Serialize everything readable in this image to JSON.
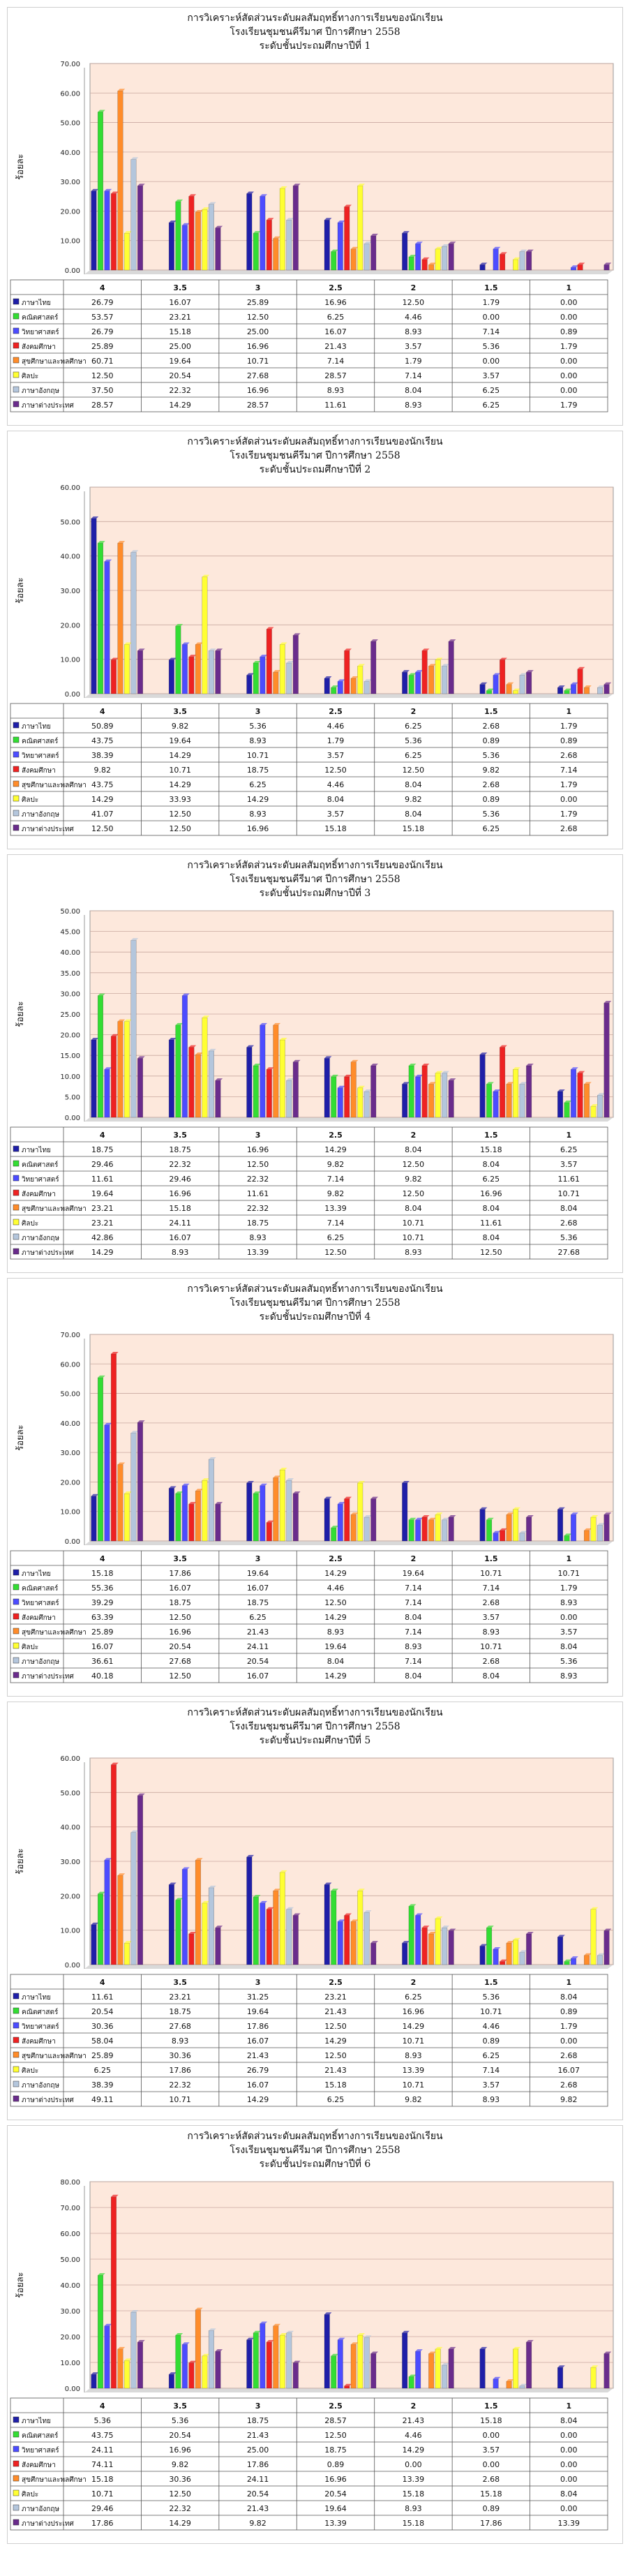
{
  "colors": [
    "#1f1fa8",
    "#33dd33",
    "#4c4cff",
    "#ee2222",
    "#ff8c2a",
    "#ffff33",
    "#b4c6dc",
    "#6a2c8c"
  ],
  "chart_data": [
    {
      "type": "bar",
      "title_lines": [
        "การวิเคราะห์สัดส่วนระดับผลสัมฤทธิ์ทางการเรียนของนักเรียน",
        "โรงเรียนชุมชนคีรีมาศ ปีการศึกษา 2558",
        "ระดับชั้นประถมศึกษาปีที่ 1"
      ],
      "ylabel": "ร้อยละ",
      "ylim": [
        0,
        70
      ],
      "yticks": [
        "0.00",
        "10.00",
        "20.00",
        "30.00",
        "40.00",
        "50.00",
        "60.00",
        "70.00"
      ],
      "categories": [
        "4",
        "3.5",
        "3",
        "2.5",
        "2",
        "1.5",
        "1"
      ],
      "series": [
        {
          "name": "ภาษาไทย",
          "values": [
            "26.79",
            "16.07",
            "25.89",
            "16.96",
            "12.50",
            "1.79",
            "0.00"
          ]
        },
        {
          "name": "คณิตศาสตร์",
          "values": [
            "53.57",
            "23.21",
            "12.50",
            "6.25",
            "4.46",
            "0.00",
            "0.00"
          ]
        },
        {
          "name": "วิทยาศาสตร์",
          "values": [
            "26.79",
            "15.18",
            "25.00",
            "16.07",
            "8.93",
            "7.14",
            "0.89"
          ]
        },
        {
          "name": "สังคมศึกษา",
          "values": [
            "25.89",
            "25.00",
            "16.96",
            "21.43",
            "3.57",
            "5.36",
            "1.79"
          ]
        },
        {
          "name": "สุขศึกษาและพลศึกษา",
          "values": [
            "60.71",
            "19.64",
            "10.71",
            "7.14",
            "1.79",
            "0.00",
            "0.00"
          ]
        },
        {
          "name": "ศิลปะ",
          "values": [
            "12.50",
            "20.54",
            "27.68",
            "28.57",
            "7.14",
            "3.57",
            "0.00"
          ]
        },
        {
          "name": "ภาษาอังกฤษ",
          "values": [
            "37.50",
            "22.32",
            "16.96",
            "8.93",
            "8.04",
            "6.25",
            "0.00"
          ]
        },
        {
          "name": "ภาษาต่างประเทศ",
          "values": [
            "28.57",
            "14.29",
            "28.57",
            "11.61",
            "8.93",
            "6.25",
            "1.79"
          ]
        }
      ]
    },
    {
      "type": "bar",
      "title_lines": [
        "การวิเคราะห์สัดส่วนระดับผลสัมฤทธิ์ทางการเรียนของนักเรียน",
        "โรงเรียนชุมชนคีรีมาศ ปีการศึกษา 2558",
        "ระดับชั้นประถมศึกษาปีที่ 2"
      ],
      "ylabel": "ร้อยละ",
      "ylim": [
        0,
        60
      ],
      "yticks": [
        "0.00",
        "10.00",
        "20.00",
        "30.00",
        "40.00",
        "50.00",
        "60.00"
      ],
      "categories": [
        "4",
        "3.5",
        "3",
        "2.5",
        "2",
        "1.5",
        "1"
      ],
      "series": [
        {
          "name": "ภาษาไทย",
          "values": [
            "50.89",
            "9.82",
            "5.36",
            "4.46",
            "6.25",
            "2.68",
            "1.79"
          ]
        },
        {
          "name": "คณิตศาสตร์",
          "values": [
            "43.75",
            "19.64",
            "8.93",
            "1.79",
            "5.36",
            "0.89",
            "0.89"
          ]
        },
        {
          "name": "วิทยาศาสตร์",
          "values": [
            "38.39",
            "14.29",
            "10.71",
            "3.57",
            "6.25",
            "5.36",
            "2.68"
          ]
        },
        {
          "name": "สังคมศึกษา",
          "values": [
            "9.82",
            "10.71",
            "18.75",
            "12.50",
            "12.50",
            "9.82",
            "7.14"
          ]
        },
        {
          "name": "สุขศึกษาและพลศึกษา",
          "values": [
            "43.75",
            "14.29",
            "6.25",
            "4.46",
            "8.04",
            "2.68",
            "1.79"
          ]
        },
        {
          "name": "ศิลปะ",
          "values": [
            "14.29",
            "33.93",
            "14.29",
            "8.04",
            "9.82",
            "0.89",
            "0.00"
          ]
        },
        {
          "name": "ภาษาอังกฤษ",
          "values": [
            "41.07",
            "12.50",
            "8.93",
            "3.57",
            "8.04",
            "5.36",
            "1.79"
          ]
        },
        {
          "name": "ภาษาต่างประเทศ",
          "values": [
            "12.50",
            "12.50",
            "16.96",
            "15.18",
            "15.18",
            "6.25",
            "2.68"
          ]
        }
      ]
    },
    {
      "type": "bar",
      "title_lines": [
        "การวิเคราะห์สัดส่วนระดับผลสัมฤทธิ์ทางการเรียนของนักเรียน",
        "โรงเรียนชุมชนคีรีมาศ ปีการศึกษา 2558",
        "ระดับชั้นประถมศึกษาปีที่ 3"
      ],
      "ylabel": "ร้อยละ",
      "ylim": [
        0,
        50
      ],
      "yticks": [
        "0.00",
        "5.00",
        "10.00",
        "15.00",
        "20.00",
        "25.00",
        "30.00",
        "35.00",
        "40.00",
        "45.00",
        "50.00"
      ],
      "categories": [
        "4",
        "3.5",
        "3",
        "2.5",
        "2",
        "1.5",
        "1"
      ],
      "series": [
        {
          "name": "ภาษาไทย",
          "values": [
            "18.75",
            "18.75",
            "16.96",
            "14.29",
            "8.04",
            "15.18",
            "6.25"
          ]
        },
        {
          "name": "คณิตศาสตร์",
          "values": [
            "29.46",
            "22.32",
            "12.50",
            "9.82",
            "12.50",
            "8.04",
            "3.57"
          ]
        },
        {
          "name": "วิทยาศาสตร์",
          "values": [
            "11.61",
            "29.46",
            "22.32",
            "7.14",
            "9.82",
            "6.25",
            "11.61"
          ]
        },
        {
          "name": "สังคมศึกษา",
          "values": [
            "19.64",
            "16.96",
            "11.61",
            "9.82",
            "12.50",
            "16.96",
            "10.71"
          ]
        },
        {
          "name": "สุขศึกษาและพลศึกษา",
          "values": [
            "23.21",
            "15.18",
            "22.32",
            "13.39",
            "8.04",
            "8.04",
            "8.04"
          ]
        },
        {
          "name": "ศิลปะ",
          "values": [
            "23.21",
            "24.11",
            "18.75",
            "7.14",
            "10.71",
            "11.61",
            "2.68"
          ]
        },
        {
          "name": "ภาษาอังกฤษ",
          "values": [
            "42.86",
            "16.07",
            "8.93",
            "6.25",
            "10.71",
            "8.04",
            "5.36"
          ]
        },
        {
          "name": "ภาษาต่างประเทศ",
          "values": [
            "14.29",
            "8.93",
            "13.39",
            "12.50",
            "8.93",
            "12.50",
            "27.68"
          ]
        }
      ]
    },
    {
      "type": "bar",
      "title_lines": [
        "การวิเคราะห์สัดส่วนระดับผลสัมฤทธิ์ทางการเรียนของนักเรียน",
        "โรงเรียนชุมชนคีรีมาศ ปีการศึกษา 2558",
        "ระดับชั้นประถมศึกษาปีที่ 4"
      ],
      "ylabel": "ร้อยละ",
      "ylim": [
        0,
        70
      ],
      "yticks": [
        "0.00",
        "10.00",
        "20.00",
        "30.00",
        "40.00",
        "50.00",
        "60.00",
        "70.00"
      ],
      "categories": [
        "4",
        "3.5",
        "3",
        "2.5",
        "2",
        "1.5",
        "1"
      ],
      "series": [
        {
          "name": "ภาษาไทย",
          "values": [
            "15.18",
            "17.86",
            "19.64",
            "14.29",
            "19.64",
            "10.71",
            "10.71"
          ]
        },
        {
          "name": "คณิตศาสตร์",
          "values": [
            "55.36",
            "16.07",
            "16.07",
            "4.46",
            "7.14",
            "7.14",
            "1.79"
          ]
        },
        {
          "name": "วิทยาศาสตร์",
          "values": [
            "39.29",
            "18.75",
            "18.75",
            "12.50",
            "7.14",
            "2.68",
            "8.93"
          ]
        },
        {
          "name": "สังคมศึกษา",
          "values": [
            "63.39",
            "12.50",
            "6.25",
            "14.29",
            "8.04",
            "3.57",
            "0.00"
          ]
        },
        {
          "name": "สุขศึกษาและพลศึกษา",
          "values": [
            "25.89",
            "16.96",
            "21.43",
            "8.93",
            "7.14",
            "8.93",
            "3.57"
          ]
        },
        {
          "name": "ศิลปะ",
          "values": [
            "16.07",
            "20.54",
            "24.11",
            "19.64",
            "8.93",
            "10.71",
            "8.04"
          ]
        },
        {
          "name": "ภาษาอังกฤษ",
          "values": [
            "36.61",
            "27.68",
            "20.54",
            "8.04",
            "7.14",
            "2.68",
            "5.36"
          ]
        },
        {
          "name": "ภาษาต่างประเทศ",
          "values": [
            "40.18",
            "12.50",
            "16.07",
            "14.29",
            "8.04",
            "8.04",
            "8.93"
          ]
        }
      ]
    },
    {
      "type": "bar",
      "title_lines": [
        "การวิเคราะห์สัดส่วนระดับผลสัมฤทธิ์ทางการเรียนของนักเรียน",
        "โรงเรียนชุมชนคีรีมาศ ปีการศึกษา 2558",
        "ระดับชั้นประถมศึกษาปีที่ 5"
      ],
      "ylabel": "ร้อยละ",
      "ylim": [
        0,
        60
      ],
      "yticks": [
        "0.00",
        "10.00",
        "20.00",
        "30.00",
        "40.00",
        "50.00",
        "60.00"
      ],
      "categories": [
        "4",
        "3.5",
        "3",
        "2.5",
        "2",
        "1.5",
        "1"
      ],
      "series": [
        {
          "name": "ภาษาไทย",
          "values": [
            "11.61",
            "23.21",
            "31.25",
            "23.21",
            "6.25",
            "5.36",
            "8.04"
          ]
        },
        {
          "name": "คณิตศาสตร์",
          "values": [
            "20.54",
            "18.75",
            "19.64",
            "21.43",
            "16.96",
            "10.71",
            "0.89"
          ]
        },
        {
          "name": "วิทยาศาสตร์",
          "values": [
            "30.36",
            "27.68",
            "17.86",
            "12.50",
            "14.29",
            "4.46",
            "1.79"
          ]
        },
        {
          "name": "สังคมศึกษา",
          "values": [
            "58.04",
            "8.93",
            "16.07",
            "14.29",
            "10.71",
            "0.89",
            "0.00"
          ]
        },
        {
          "name": "สุขศึกษาและพลศึกษา",
          "values": [
            "25.89",
            "30.36",
            "21.43",
            "12.50",
            "8.93",
            "6.25",
            "2.68"
          ]
        },
        {
          "name": "ศิลปะ",
          "values": [
            "6.25",
            "17.86",
            "26.79",
            "21.43",
            "13.39",
            "7.14",
            "16.07"
          ]
        },
        {
          "name": "ภาษาอังกฤษ",
          "values": [
            "38.39",
            "22.32",
            "16.07",
            "15.18",
            "10.71",
            "3.57",
            "2.68"
          ]
        },
        {
          "name": "ภาษาต่างประเทศ",
          "values": [
            "49.11",
            "10.71",
            "14.29",
            "6.25",
            "9.82",
            "8.93",
            "9.82"
          ]
        }
      ]
    },
    {
      "type": "bar",
      "title_lines": [
        "การวิเคราะห์สัดส่วนระดับผลสัมฤทธิ์ทางการเรียนของนักเรียน",
        "โรงเรียนชุมชนคีรีมาศ ปีการศึกษา 2558",
        "ระดับชั้นประถมศึกษาปีที่ 6"
      ],
      "ylabel": "ร้อยละ",
      "ylim": [
        0,
        80
      ],
      "yticks": [
        "0.00",
        "10.00",
        "20.00",
        "30.00",
        "40.00",
        "50.00",
        "60.00",
        "70.00",
        "80.00"
      ],
      "categories": [
        "4",
        "3.5",
        "3",
        "2.5",
        "2",
        "1.5",
        "1"
      ],
      "series": [
        {
          "name": "ภาษาไทย",
          "values": [
            "5.36",
            "5.36",
            "18.75",
            "28.57",
            "21.43",
            "15.18",
            "8.04"
          ]
        },
        {
          "name": "คณิตศาสตร์",
          "values": [
            "43.75",
            "20.54",
            "21.43",
            "12.50",
            "4.46",
            "0.00",
            "0.00"
          ]
        },
        {
          "name": "วิทยาศาสตร์",
          "values": [
            "24.11",
            "16.96",
            "25.00",
            "18.75",
            "14.29",
            "3.57",
            "0.00"
          ]
        },
        {
          "name": "สังคมศึกษา",
          "values": [
            "74.11",
            "9.82",
            "17.86",
            "0.89",
            "0.00",
            "0.00",
            "0.00"
          ]
        },
        {
          "name": "สุขศึกษาและพลศึกษา",
          "values": [
            "15.18",
            "30.36",
            "24.11",
            "16.96",
            "13.39",
            "2.68",
            "0.00"
          ]
        },
        {
          "name": "ศิลปะ",
          "values": [
            "10.71",
            "12.50",
            "20.54",
            "20.54",
            "15.18",
            "15.18",
            "8.04"
          ]
        },
        {
          "name": "ภาษาอังกฤษ",
          "values": [
            "29.46",
            "22.32",
            "21.43",
            "19.64",
            "8.93",
            "0.89",
            "0.00"
          ]
        },
        {
          "name": "ภาษาต่างประเทศ",
          "values": [
            "17.86",
            "14.29",
            "9.82",
            "13.39",
            "15.18",
            "17.86",
            "13.39"
          ]
        }
      ]
    }
  ]
}
